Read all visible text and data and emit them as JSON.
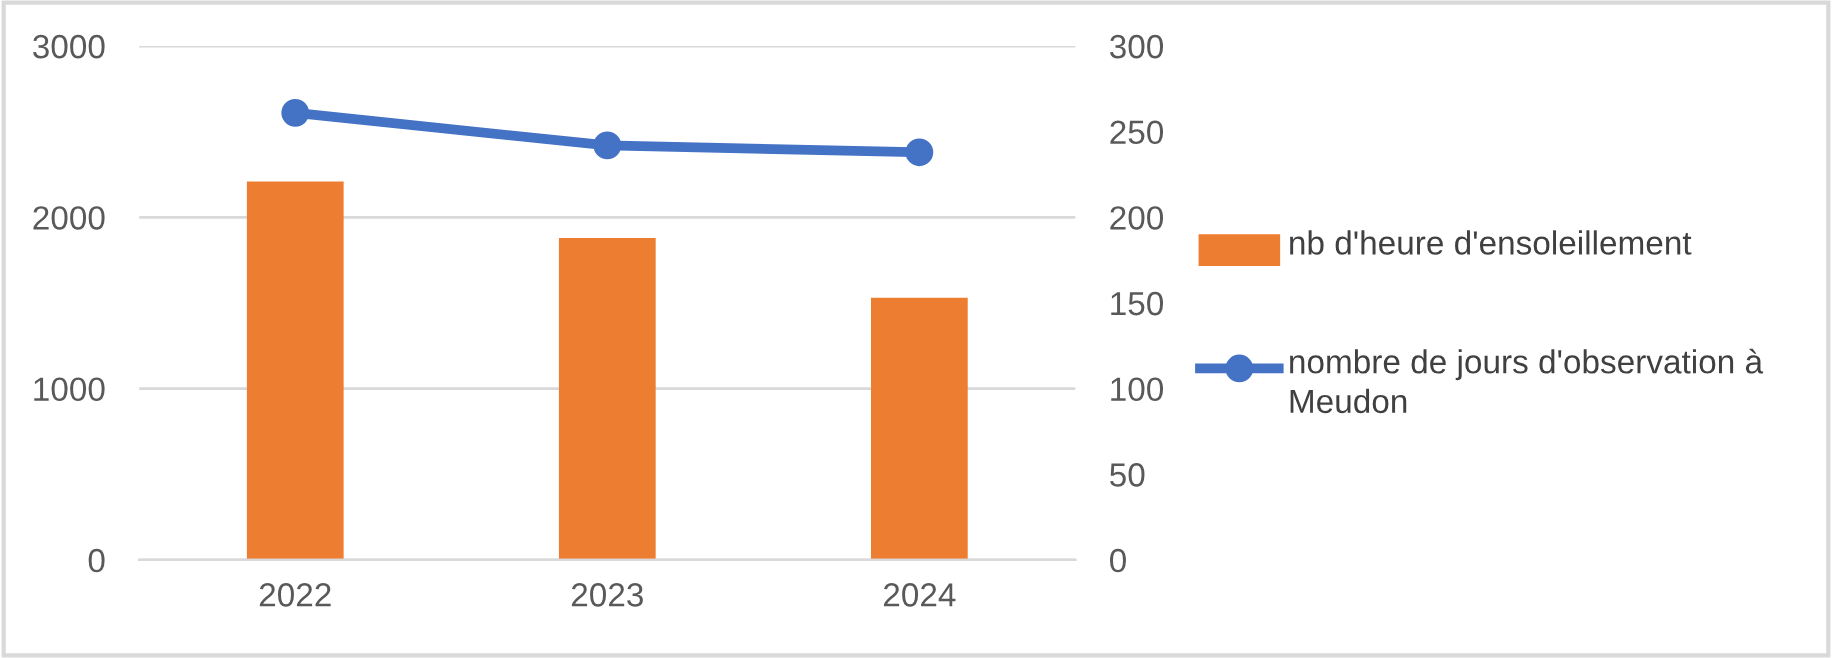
{
  "chart_data": {
    "type": "bar",
    "categories": [
      "2022",
      "2023",
      "2024"
    ],
    "series": [
      {
        "name": "nb d'heure d'ensoleillement",
        "color": "#ed7d31",
        "values": [
          2210,
          1880,
          1530
        ]
      },
      {
        "name": "nombre de jours d'observation à Meudon",
        "type": "line",
        "axis": "y2",
        "color": "#4472c4",
        "values": [
          261,
          242,
          238
        ]
      }
    ],
    "ylim": [
      0,
      3000
    ],
    "yticks": [
      0,
      1000,
      2000,
      3000
    ],
    "y2lim": [
      0,
      300
    ],
    "y2ticks": [
      0,
      50,
      100,
      150,
      200,
      250,
      300
    ],
    "grid": "y",
    "legend": "right",
    "marker": "circle"
  }
}
